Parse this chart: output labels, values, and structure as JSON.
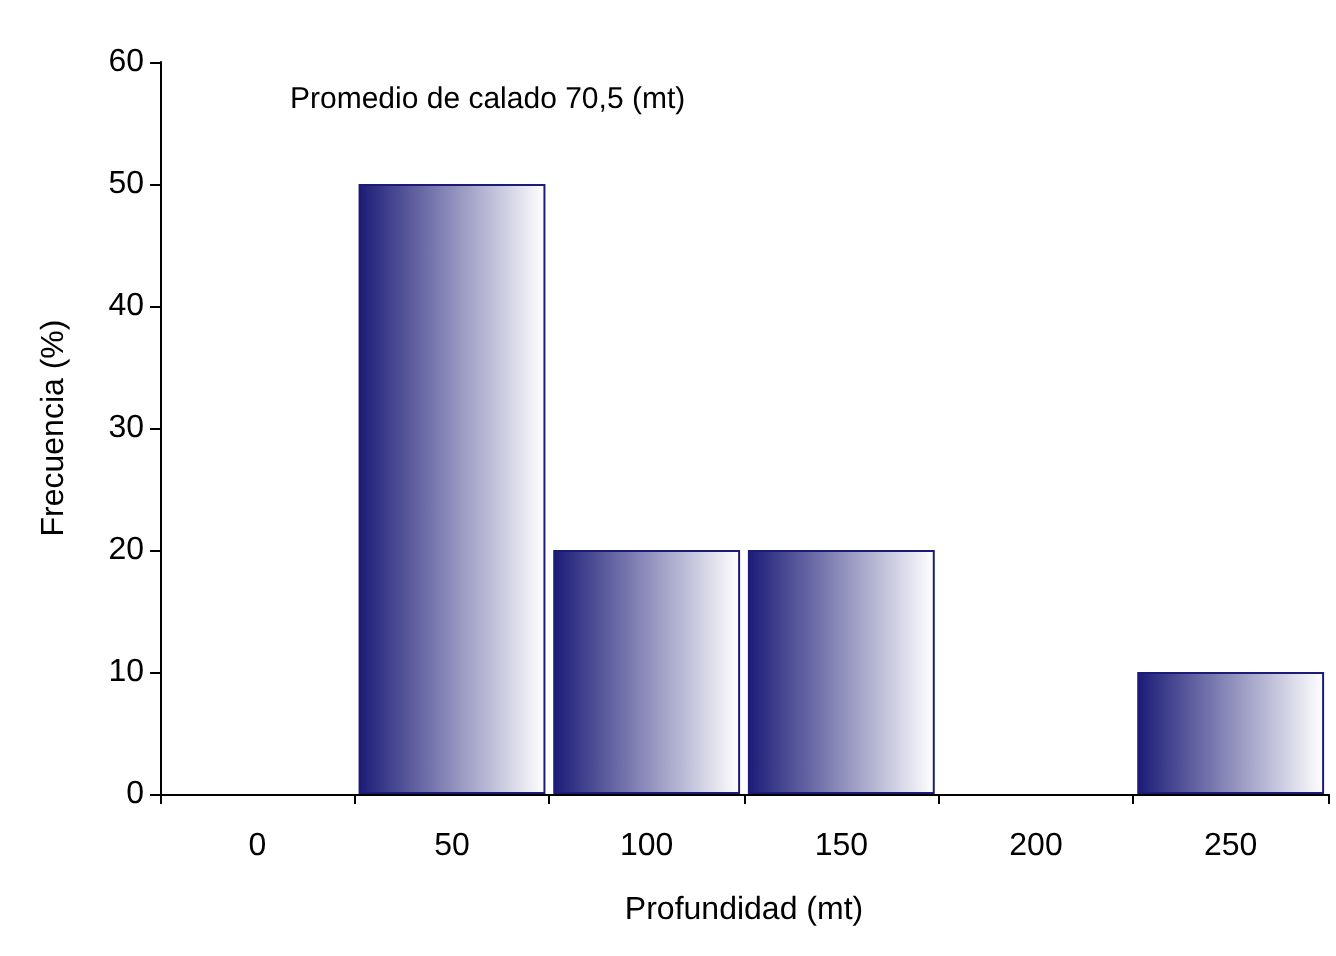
{
  "chart_data": {
    "type": "bar",
    "xlabel": "Profundidad (mt)",
    "ylabel": "Frecuencia (%)",
    "categories": [
      "0",
      "50",
      "100",
      "150",
      "200",
      "250"
    ],
    "values": [
      0,
      50,
      20,
      20,
      0,
      10
    ],
    "color": "#1c1c78",
    "ylim": [
      0,
      60
    ],
    "yticks": [
      0,
      10,
      20,
      30,
      40,
      50,
      60
    ],
    "grid": false,
    "annotations": [
      "Promedio de calado 70,5 (mt)"
    ]
  }
}
